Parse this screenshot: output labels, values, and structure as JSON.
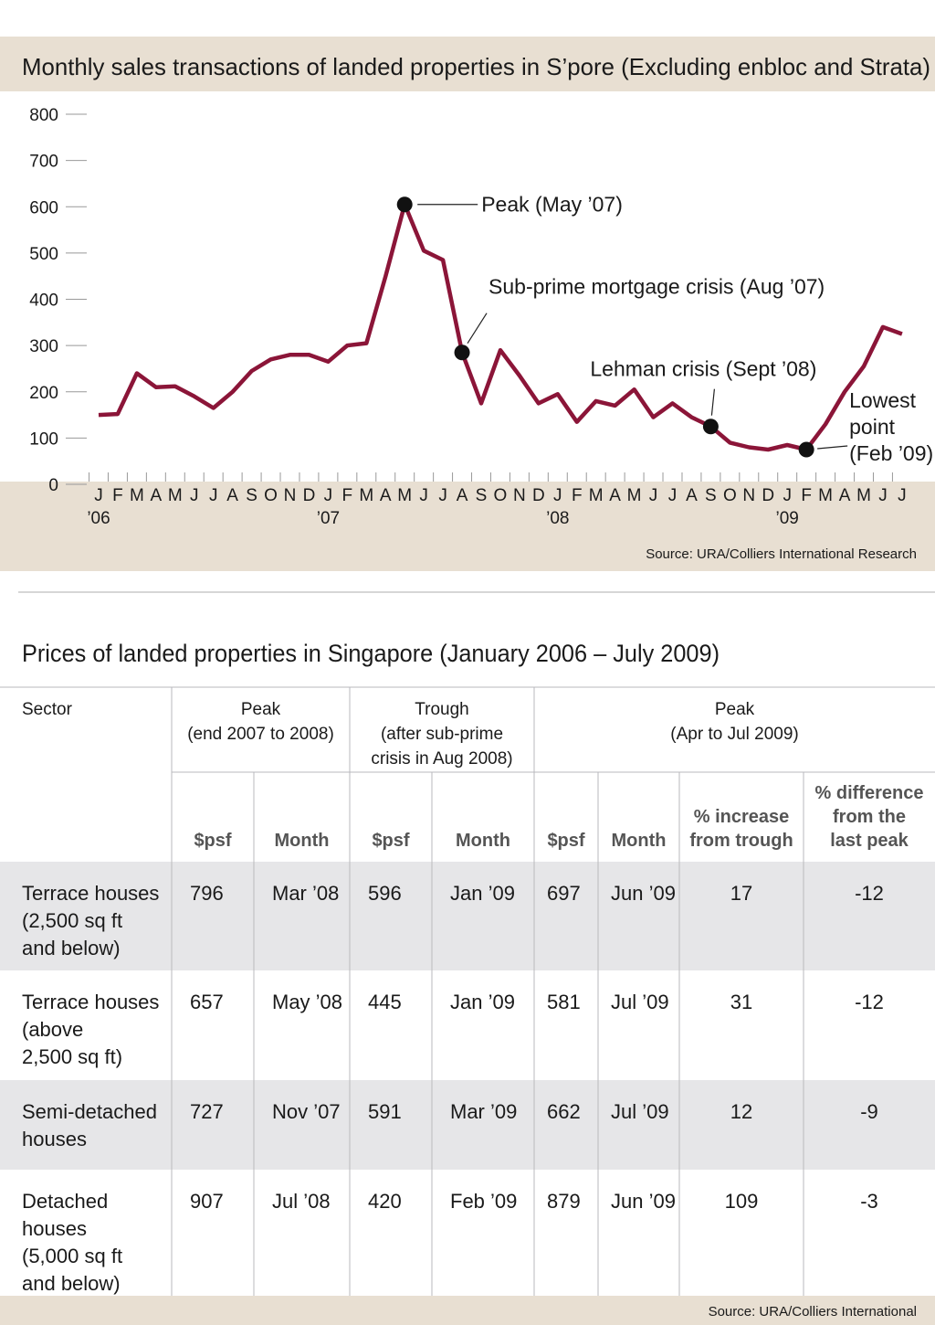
{
  "chart_data": {
    "type": "line",
    "title": "Monthly sales transactions of landed properties in S’pore  (Excluding enbloc and Strata)",
    "categories": [
      "J",
      "F",
      "M",
      "A",
      "M",
      "J",
      "J",
      "A",
      "S",
      "O",
      "N",
      "D",
      "J",
      "F",
      "M",
      "A",
      "M",
      "J",
      "J",
      "A",
      "S",
      "O",
      "N",
      "D",
      "J",
      "F",
      "M",
      "A",
      "M",
      "J",
      "J",
      "A",
      "S",
      "O",
      "N",
      "D",
      "J",
      "F",
      "M",
      "A",
      "M",
      "J",
      "J"
    ],
    "year_labels": [
      "’06",
      "’07",
      "’08",
      "’09"
    ],
    "values": [
      150,
      152,
      240,
      210,
      212,
      190,
      165,
      200,
      245,
      270,
      280,
      280,
      265,
      300,
      305,
      450,
      605,
      505,
      485,
      285,
      175,
      290,
      235,
      175,
      195,
      135,
      180,
      170,
      205,
      145,
      175,
      145,
      125,
      90,
      80,
      75,
      85,
      75,
      130,
      200,
      255,
      340,
      325
    ],
    "color": "#8b1538",
    "ylim": [
      0,
      800
    ],
    "yticks": [
      0,
      100,
      200,
      300,
      400,
      500,
      600,
      700,
      800
    ],
    "annotations": [
      {
        "index": 16,
        "lines": [
          "Peak (May ’07)"
        ]
      },
      {
        "index": 19,
        "lines": [
          "Sub-prime mortgage crisis (Aug ’07)"
        ]
      },
      {
        "index": 32,
        "lines": [
          "Lehman crisis (Sept ’08)"
        ]
      },
      {
        "index": 37,
        "lines": [
          "Lowest",
          "point",
          "(Feb ’09)"
        ]
      }
    ],
    "source": "Source: URA/Colliers International Research"
  },
  "table": {
    "title": "Prices of landed properties in Singapore (January 2006 – July 2009)",
    "group_headers": [
      [
        "Sector"
      ],
      [
        "Peak",
        "(end 2007 to 2008)"
      ],
      [
        "Trough",
        "(after sub-prime",
        "crisis in Aug 2008)"
      ],
      [
        "Peak",
        "(Apr  to Jul 2009)"
      ]
    ],
    "columns": [
      [
        "$psf"
      ],
      [
        "Month"
      ],
      [
        "$psf"
      ],
      [
        "Month"
      ],
      [
        "$psf"
      ],
      [
        "Month"
      ],
      [
        "% increase",
        "from trough"
      ],
      [
        "% difference",
        "from the",
        "last peak"
      ]
    ],
    "rows": [
      [
        [
          "Terrace houses",
          "(2,500 sq ft",
          "and below)"
        ],
        796,
        "Mar ’08",
        596,
        "Jan ’09",
        697,
        "Jun ’09",
        17,
        -12
      ],
      [
        [
          "Terrace houses",
          "(above",
          "2,500 sq ft)"
        ],
        657,
        "May ’08",
        445,
        "Jan ’09",
        581,
        "Jul ’09",
        31,
        -12
      ],
      [
        [
          "Semi-detached",
          "houses"
        ],
        727,
        "Nov ’07",
        591,
        "Mar ’09",
        662,
        "Jul ’09",
        12,
        -9
      ],
      [
        [
          "Detached",
          "houses",
          "(5,000 sq ft",
          "and below)"
        ],
        907,
        "Jul ’08",
        420,
        "Feb ’09",
        879,
        "Jun ’09",
        109,
        -3
      ]
    ],
    "source": "Source: URA/Colliers International"
  }
}
